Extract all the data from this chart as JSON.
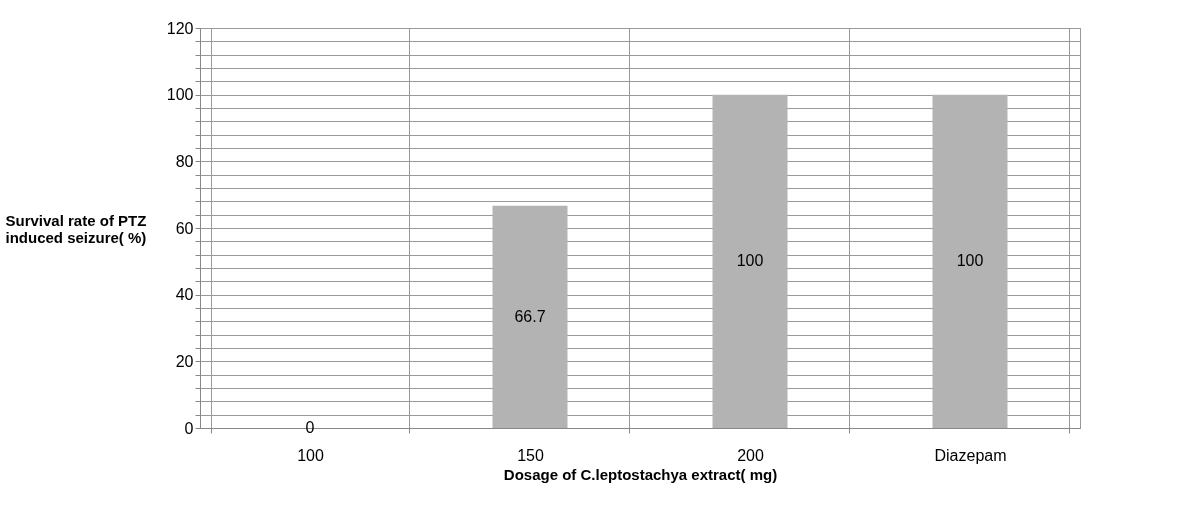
{
  "chart_data": {
    "type": "bar",
    "xlabel": "Dosage of C.leptostachya extract( mg)",
    "ylabel": "Survival rate of PTZ induced seizure( %)",
    "categories": [
      "100",
      "150",
      "200",
      "Diazepam"
    ],
    "values": [
      0,
      66.7,
      100,
      100
    ],
    "color": "#b3b3b3",
    "ylim": [
      0,
      120
    ],
    "yticks": [
      0,
      {
        "value": 4,
        "label": null
      },
      {
        "value": 8,
        "label": null
      },
      {
        "value": 12,
        "label": null
      },
      {
        "value": 16,
        "label": null
      },
      20,
      {
        "value": 24,
        "label": null
      },
      {
        "value": 28,
        "label": null
      },
      {
        "value": 32,
        "label": null
      },
      {
        "value": 36,
        "label": null
      },
      40,
      {
        "value": 44,
        "label": null
      },
      {
        "value": 48,
        "label": null
      },
      {
        "value": 52,
        "label": null
      },
      {
        "value": 56,
        "label": null
      },
      60,
      {
        "value": 64,
        "label": null
      },
      {
        "value": 68,
        "label": null
      },
      {
        "value": 72,
        "label": null
      },
      {
        "value": 76,
        "label": null
      },
      80,
      {
        "value": 84,
        "label": null
      },
      {
        "value": 88,
        "label": null
      },
      {
        "value": 92,
        "label": null
      },
      {
        "value": 96,
        "label": null
      },
      100,
      {
        "value": 104,
        "label": null
      },
      {
        "value": 108,
        "label": null
      },
      {
        "value": 112,
        "label": null
      },
      {
        "value": 116,
        "label": null
      },
      120
    ],
    "grid": true,
    "data_labels": true
  }
}
